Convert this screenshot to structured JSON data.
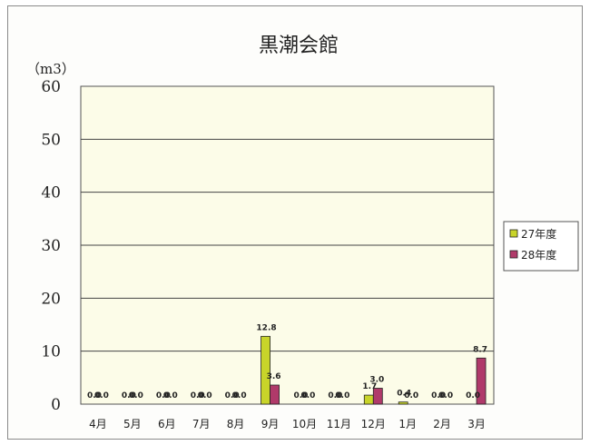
{
  "chart_data": {
    "type": "bar",
    "title": "黒潮会館",
    "unit_label": "（m3）",
    "xlabel": "",
    "ylabel": "",
    "ylim": [
      0,
      60
    ],
    "yticks": [
      0,
      10,
      20,
      30,
      40,
      50,
      60
    ],
    "grid": true,
    "legend_position": "right",
    "categories": [
      "4月",
      "5月",
      "6月",
      "7月",
      "8月",
      "9月",
      "10月",
      "11月",
      "12月",
      "1月",
      "2月",
      "3月"
    ],
    "series": [
      {
        "name": "27年度",
        "color": "#c8d42a",
        "values": [
          0.0,
          0.0,
          0.0,
          0.0,
          0.0,
          12.8,
          0.0,
          0.0,
          1.7,
          0.4,
          0.0,
          0.0
        ],
        "labels": [
          "0.0",
          "0.0",
          "0.0",
          "0.0",
          "0.0",
          "12.8",
          "0.0",
          "0.0",
          "1.7",
          "0.4",
          "0.0",
          "0.0"
        ]
      },
      {
        "name": "28年度",
        "color": "#b03a6a",
        "values": [
          0.0,
          0.0,
          0.0,
          0.0,
          0.0,
          3.6,
          0.0,
          0.0,
          3.0,
          0.0,
          0.0,
          8.7
        ],
        "labels": [
          "0.0",
          "0.0",
          "0.0",
          "0.0",
          "0.0",
          "3.6",
          "0.0",
          "0.0",
          "3.0",
          "0.0",
          "0.0",
          "8.7"
        ]
      }
    ]
  }
}
